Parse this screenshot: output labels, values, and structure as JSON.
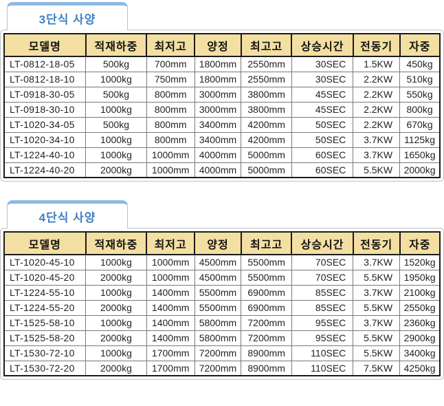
{
  "colors": {
    "header_bg": "#F4DFA2",
    "tab_text": "#3C80C4",
    "tab_strip": "#8CB9E4"
  },
  "columns": [
    "모델명",
    "적재하중",
    "최저고",
    "양정",
    "최고고",
    "상승시간",
    "전동기",
    "자중"
  ],
  "sections": [
    {
      "tab_label": "3단식 사양",
      "rows": [
        [
          "LT-0812-18-05",
          "500kg",
          "700mm",
          "1800mm",
          "2550mm",
          "30SEC",
          "1.5KW",
          "450kg"
        ],
        [
          "LT-0812-18-10",
          "1000kg",
          "750mm",
          "1800mm",
          "2550mm",
          "30SEC",
          "2.2KW",
          "510kg"
        ],
        [
          "LT-0918-30-05",
          "500kg",
          "800mm",
          "3000mm",
          "3800mm",
          "45SEC",
          "2.2KW",
          "550kg"
        ],
        [
          "LT-0918-30-10",
          "1000kg",
          "800mm",
          "3000mm",
          "3800mm",
          "45SEC",
          "2.2KW",
          "800kg"
        ],
        [
          "LT-1020-34-05",
          "500kg",
          "800mm",
          "3400mm",
          "4200mm",
          "50SEC",
          "2.2KW",
          "670kg"
        ],
        [
          "LT-1020-34-10",
          "1000kg",
          "800mm",
          "3400mm",
          "4200mm",
          "50SEC",
          "3.7KW",
          "1125kg"
        ],
        [
          "LT-1224-40-10",
          "1000kg",
          "1000mm",
          "4000mm",
          "5000mm",
          "60SEC",
          "3.7KW",
          "1650kg"
        ],
        [
          "LT-1224-40-20",
          "2000kg",
          "1000mm",
          "4000mm",
          "5000mm",
          "60SEC",
          "5.5KW",
          "2000kg"
        ]
      ]
    },
    {
      "tab_label": "4단식 사양",
      "rows": [
        [
          "LT-1020-45-10",
          "1000kg",
          "1000mm",
          "4500mm",
          "5500mm",
          "70SEC",
          "3.7KW",
          "1520kg"
        ],
        [
          "LT-1020-45-20",
          "2000kg",
          "1000mm",
          "4500mm",
          "5500mm",
          "70SEC",
          "5.5KW",
          "1950kg"
        ],
        [
          "LT-1224-55-10",
          "1000kg",
          "1400mm",
          "5500mm",
          "6900mm",
          "85SEC",
          "3.7KW",
          "2100kg"
        ],
        [
          "LT-1224-55-20",
          "2000kg",
          "1400mm",
          "5500mm",
          "6900mm",
          "85SEC",
          "5.5KW",
          "2550kg"
        ],
        [
          "LT-1525-58-10",
          "1000kg",
          "1400mm",
          "5800mm",
          "7200mm",
          "95SEC",
          "3.7KW",
          "2360kg"
        ],
        [
          "LT-1525-58-20",
          "2000kg",
          "1400mm",
          "5800mm",
          "7200mm",
          "95SEC",
          "5.5KW",
          "2900kg"
        ],
        [
          "LT-1530-72-10",
          "1000kg",
          "1700mm",
          "7200mm",
          "8900mm",
          "110SEC",
          "5.5KW",
          "3400kg"
        ],
        [
          "LT-1530-72-20",
          "2000kg",
          "1700mm",
          "7200mm",
          "8900mm",
          "110SEC",
          "7.5KW",
          "4250kg"
        ]
      ]
    }
  ]
}
